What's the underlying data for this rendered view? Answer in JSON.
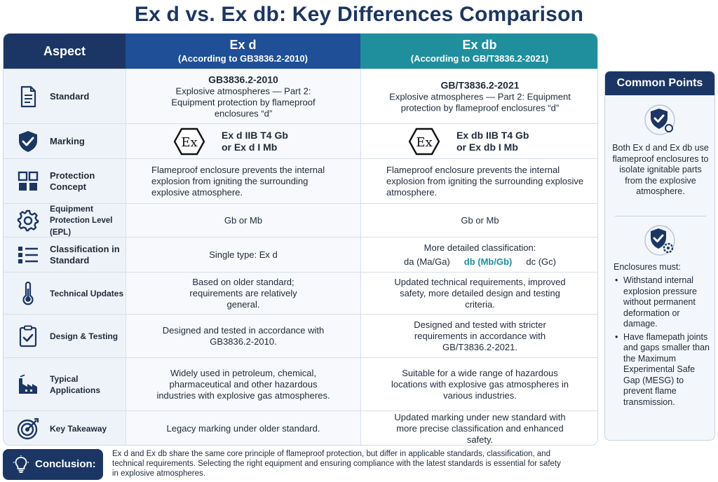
{
  "title": "Ex d vs. Ex db: Key Differences Comparison",
  "header": {
    "aspect": "Aspect",
    "exd_main": "Ex d",
    "exd_sub": "(According to GB3836.2-2010)",
    "exdb_main": "Ex db",
    "exdb_sub": "(According to GB/T3836.2-2021)"
  },
  "rows": [
    {
      "aspect": "Standard",
      "icon": "document-icon",
      "exd_title": "GB3836.2-2010",
      "exd_text": "Explosive atmospheres — Part 2: Equipment protection by flameproof enclosures “d”",
      "exdb_title": "GB/T3836.2-2021",
      "exdb_text": "Explosive atmospheres — Part 2: Equipment protection by flameproof enclosures “d”"
    },
    {
      "aspect": "Marking",
      "icon": "shield-check-icon",
      "exd_line1": "Ex d IIB T4 Gb",
      "exd_line2": "or Ex d I Mb",
      "exdb_line1": "Ex db IIB T4 Gb",
      "exdb_line2": "or Ex db I Mb"
    },
    {
      "aspect": "Protection Concept",
      "icon": "grid-icon",
      "exd_text": "Flameproof enclosure prevents the internal explosion from igniting the surrounding explosive atmosphere.",
      "exdb_text": "Flameproof enclosure prevents the internal explosion from igniting the surrounding explosive atmosphere."
    },
    {
      "aspect_line1": "Equipment",
      "aspect_line2": "Protection Level (EPL)",
      "icon": "gear-icon",
      "exd_text": "Gb or Mb",
      "exdb_text": "Gb or Mb"
    },
    {
      "aspect": "Classification in Standard",
      "icon": "list-icon",
      "exd_text": "Single type: Ex d",
      "exdb_text": "More detailed classification:",
      "exdb_cls1": "da (Ma/Ga)",
      "exdb_cls2": "db (Mb/Gb)",
      "exdb_cls3": "dc (Gc)"
    },
    {
      "aspect": "Technical Updates",
      "icon": "thermometer-icon",
      "exd_text": "Based on older standard; requirements are relatively general.",
      "exdb_text": "Updated technical requirements, improved safety, more detailed design and testing criteria."
    },
    {
      "aspect": "Design & Testing",
      "icon": "clipboard-check-icon",
      "exd_text": "Designed and tested in accordance with GB3836.2-2010.",
      "exdb_text": "Designed and tested with stricter requirements in accordance with GB/T3836.2-2021."
    },
    {
      "aspect": "Typical Applications",
      "icon": "factory-icon",
      "exd_text": "Widely used in petroleum, chemical, pharmaceutical and other hazardous industries with explosive gas atmospheres.",
      "exdb_text": "Suitable for a wide range of hazardous locations with explosive gas atmospheres in various industries."
    },
    {
      "aspect": "Key Takeaway",
      "icon": "target-icon",
      "exd_text": "Legacy marking under older standard.",
      "exdb_text": "Updated marking under new standard with more precise classification and enhanced safety."
    }
  ],
  "common": {
    "title": "Common Points",
    "text1": "Both Ex d and Ex db use flameproof enclosures to isolate ignitable parts from the explosive atmosphere.",
    "lead": "Enclosures must:",
    "bullets": [
      "Withstand internal explosion pressure without permanent deformation or damage.",
      "Have flamepath joints and gaps smaller than the Maximum Experimental Safe Gap (MESG) to prevent flame transmission."
    ]
  },
  "conclusion": {
    "label": "Conclusion:",
    "text": "Ex d and Ex db share the same core principle of flameproof protection, but differ in applicable standards, classification, and technical requirements. Selecting the right equipment and ensuring compliance with the latest standards is essential for safety in explosive atmospheres."
  },
  "colors": {
    "navy": "#1b3664",
    "blue": "#1e4f97",
    "teal": "#1f8f9e"
  }
}
